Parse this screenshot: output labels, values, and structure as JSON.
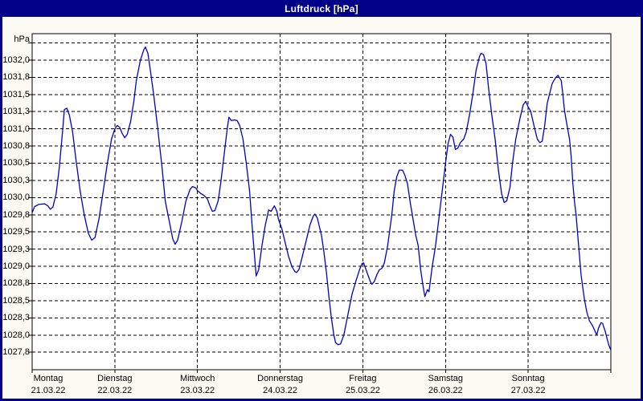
{
  "window": {
    "title": "Luftdruck [hPa]"
  },
  "colors": {
    "titlebar": "#000088",
    "frame": "#000088",
    "title_text": "#ffffff",
    "page_bg": "#fbfbf3",
    "plot_bg": "#ffffff",
    "grid": "#000000",
    "axis": "#000000",
    "line": "#0000cc"
  },
  "chart_data": {
    "type": "line",
    "title": "Luftdruck [hPa]",
    "unit_label": "hPa",
    "ylabel": "hPa",
    "xlabel": "",
    "ylim": [
      1027.5,
      1032.4
    ],
    "grid": "dashed, every 0.25 hPa horizontal, day boundaries vertical",
    "legend_position": "none",
    "yticks": [
      {
        "label": "1032,0",
        "value": 1032.0
      },
      {
        "label": "1031,8",
        "value": 1031.75
      },
      {
        "label": "1031,5",
        "value": 1031.5
      },
      {
        "label": "1031,3",
        "value": 1031.25
      },
      {
        "label": "1031,0",
        "value": 1031.0
      },
      {
        "label": "1030,8",
        "value": 1030.75
      },
      {
        "label": "1030,5",
        "value": 1030.5
      },
      {
        "label": "1030,3",
        "value": 1030.25
      },
      {
        "label": "1030,0",
        "value": 1030.0
      },
      {
        "label": "1029,8",
        "value": 1029.75
      },
      {
        "label": "1029,5",
        "value": 1029.5
      },
      {
        "label": "1029,3",
        "value": 1029.25
      },
      {
        "label": "1029,0",
        "value": 1029.0
      },
      {
        "label": "1028,8",
        "value": 1028.75
      },
      {
        "label": "1028,5",
        "value": 1028.5
      },
      {
        "label": "1028,3",
        "value": 1028.25
      },
      {
        "label": "1028,0",
        "value": 1028.0
      },
      {
        "label": "1027,8",
        "value": 1027.75
      }
    ],
    "grid_top_value": 1032.25,
    "x_days": [
      {
        "name": "Montag",
        "date": "21.03.22"
      },
      {
        "name": "Dienstag",
        "date": "22.03.22"
      },
      {
        "name": "Mittwoch",
        "date": "23.03.22"
      },
      {
        "name": "Donnerstag",
        "date": "24.03.22"
      },
      {
        "name": "Freitag",
        "date": "25.03.22"
      },
      {
        "name": "Samstag",
        "date": "26.03.22"
      },
      {
        "name": "Sonntag",
        "date": "27.03.22"
      }
    ],
    "series": [
      {
        "name": "Luftdruck",
        "unit": "hPa",
        "x_unit": "days since Montag 21.03.22 00:00",
        "points": [
          [
            0.0,
            1029.78
          ],
          [
            0.03,
            1029.87
          ],
          [
            0.08,
            1029.9
          ],
          [
            0.15,
            1029.91
          ],
          [
            0.19,
            1029.88
          ],
          [
            0.22,
            1029.83
          ],
          [
            0.25,
            1029.86
          ],
          [
            0.29,
            1030.05
          ],
          [
            0.33,
            1030.45
          ],
          [
            0.37,
            1031.0
          ],
          [
            0.39,
            1031.28
          ],
          [
            0.42,
            1031.3
          ],
          [
            0.45,
            1031.2
          ],
          [
            0.49,
            1030.95
          ],
          [
            0.53,
            1030.55
          ],
          [
            0.58,
            1030.1
          ],
          [
            0.63,
            1029.75
          ],
          [
            0.68,
            1029.48
          ],
          [
            0.72,
            1029.38
          ],
          [
            0.76,
            1029.42
          ],
          [
            0.81,
            1029.7
          ],
          [
            0.86,
            1030.1
          ],
          [
            0.91,
            1030.5
          ],
          [
            0.96,
            1030.85
          ],
          [
            1.0,
            1031.0
          ],
          [
            1.03,
            1031.05
          ],
          [
            1.06,
            1031.02
          ],
          [
            1.09,
            1030.93
          ],
          [
            1.12,
            1030.87
          ],
          [
            1.15,
            1030.92
          ],
          [
            1.19,
            1031.1
          ],
          [
            1.23,
            1031.4
          ],
          [
            1.26,
            1031.7
          ],
          [
            1.31,
            1032.0
          ],
          [
            1.35,
            1032.15
          ],
          [
            1.37,
            1032.19
          ],
          [
            1.4,
            1032.1
          ],
          [
            1.43,
            1031.85
          ],
          [
            1.47,
            1031.5
          ],
          [
            1.52,
            1031.0
          ],
          [
            1.57,
            1030.45
          ],
          [
            1.61,
            1029.95
          ],
          [
            1.66,
            1029.65
          ],
          [
            1.7,
            1029.4
          ],
          [
            1.73,
            1029.32
          ],
          [
            1.76,
            1029.38
          ],
          [
            1.81,
            1029.65
          ],
          [
            1.86,
            1029.95
          ],
          [
            1.91,
            1030.12
          ],
          [
            1.94,
            1030.16
          ],
          [
            1.98,
            1030.14
          ],
          [
            2.0,
            1030.1
          ],
          [
            2.04,
            1030.06
          ],
          [
            2.08,
            1030.03
          ],
          [
            2.12,
            1029.98
          ],
          [
            2.15,
            1029.88
          ],
          [
            2.18,
            1029.8
          ],
          [
            2.21,
            1029.81
          ],
          [
            2.25,
            1029.95
          ],
          [
            2.28,
            1030.2
          ],
          [
            2.32,
            1030.6
          ],
          [
            2.36,
            1031.0
          ],
          [
            2.38,
            1031.17
          ],
          [
            2.41,
            1031.12
          ],
          [
            2.45,
            1031.13
          ],
          [
            2.48,
            1031.12
          ],
          [
            2.51,
            1031.05
          ],
          [
            2.55,
            1030.85
          ],
          [
            2.59,
            1030.5
          ],
          [
            2.63,
            1030.1
          ],
          [
            2.66,
            1029.6
          ],
          [
            2.69,
            1029.15
          ],
          [
            2.71,
            1028.86
          ],
          [
            2.74,
            1028.95
          ],
          [
            2.78,
            1029.3
          ],
          [
            2.82,
            1029.6
          ],
          [
            2.86,
            1029.82
          ],
          [
            2.89,
            1029.8
          ],
          [
            2.93,
            1029.88
          ],
          [
            2.96,
            1029.8
          ],
          [
            2.98,
            1029.68
          ],
          [
            3.02,
            1029.55
          ],
          [
            3.06,
            1029.35
          ],
          [
            3.1,
            1029.15
          ],
          [
            3.14,
            1029.0
          ],
          [
            3.18,
            1028.92
          ],
          [
            3.2,
            1028.91
          ],
          [
            3.23,
            1028.96
          ],
          [
            3.27,
            1029.15
          ],
          [
            3.32,
            1029.4
          ],
          [
            3.36,
            1029.6
          ],
          [
            3.4,
            1029.73
          ],
          [
            3.42,
            1029.76
          ],
          [
            3.45,
            1029.7
          ],
          [
            3.48,
            1029.55
          ],
          [
            3.5,
            1029.45
          ],
          [
            3.53,
            1029.2
          ],
          [
            3.56,
            1028.9
          ],
          [
            3.59,
            1028.55
          ],
          [
            3.62,
            1028.25
          ],
          [
            3.65,
            1028.0
          ],
          [
            3.67,
            1027.89
          ],
          [
            3.7,
            1027.86
          ],
          [
            3.73,
            1027.87
          ],
          [
            3.77,
            1028.0
          ],
          [
            3.82,
            1028.3
          ],
          [
            3.87,
            1028.6
          ],
          [
            3.92,
            1028.8
          ],
          [
            3.96,
            1028.95
          ],
          [
            3.99,
            1029.04
          ],
          [
            4.01,
            1029.05
          ],
          [
            4.03,
            1028.98
          ],
          [
            4.06,
            1028.88
          ],
          [
            4.09,
            1028.78
          ],
          [
            4.11,
            1028.74
          ],
          [
            4.14,
            1028.78
          ],
          [
            4.17,
            1028.88
          ],
          [
            4.2,
            1028.95
          ],
          [
            4.23,
            1028.97
          ],
          [
            4.26,
            1029.05
          ],
          [
            4.3,
            1029.3
          ],
          [
            4.35,
            1029.74
          ],
          [
            4.38,
            1030.1
          ],
          [
            4.41,
            1030.3
          ],
          [
            4.44,
            1030.4
          ],
          [
            4.48,
            1030.4
          ],
          [
            4.51,
            1030.32
          ],
          [
            4.54,
            1030.2
          ],
          [
            4.57,
            1029.95
          ],
          [
            4.6,
            1029.74
          ],
          [
            4.64,
            1029.45
          ],
          [
            4.67,
            1029.3
          ],
          [
            4.7,
            1028.95
          ],
          [
            4.73,
            1028.7
          ],
          [
            4.75,
            1028.56
          ],
          [
            4.78,
            1028.66
          ],
          [
            4.8,
            1028.63
          ],
          [
            4.84,
            1029.0
          ],
          [
            4.88,
            1029.3
          ],
          [
            4.92,
            1029.7
          ],
          [
            4.96,
            1030.1
          ],
          [
            5.0,
            1030.5
          ],
          [
            5.03,
            1030.78
          ],
          [
            5.06,
            1030.92
          ],
          [
            5.09,
            1030.88
          ],
          [
            5.12,
            1030.7
          ],
          [
            5.15,
            1030.72
          ],
          [
            5.18,
            1030.8
          ],
          [
            5.22,
            1030.85
          ],
          [
            5.25,
            1030.95
          ],
          [
            5.29,
            1031.2
          ],
          [
            5.33,
            1031.5
          ],
          [
            5.37,
            1031.85
          ],
          [
            5.41,
            1032.05
          ],
          [
            5.43,
            1032.1
          ],
          [
            5.46,
            1032.08
          ],
          [
            5.49,
            1031.95
          ],
          [
            5.52,
            1031.6
          ],
          [
            5.56,
            1031.2
          ],
          [
            5.6,
            1030.85
          ],
          [
            5.64,
            1030.4
          ],
          [
            5.68,
            1030.05
          ],
          [
            5.71,
            1029.93
          ],
          [
            5.74,
            1029.95
          ],
          [
            5.78,
            1030.15
          ],
          [
            5.81,
            1030.5
          ],
          [
            5.85,
            1030.85
          ],
          [
            5.9,
            1031.15
          ],
          [
            5.94,
            1031.35
          ],
          [
            5.97,
            1031.4
          ],
          [
            6.0,
            1031.32
          ],
          [
            6.03,
            1031.26
          ],
          [
            6.07,
            1031.05
          ],
          [
            6.11,
            1030.85
          ],
          [
            6.14,
            1030.8
          ],
          [
            6.17,
            1030.82
          ],
          [
            6.2,
            1031.05
          ],
          [
            6.23,
            1031.37
          ],
          [
            6.29,
            1031.66
          ],
          [
            6.33,
            1031.74
          ],
          [
            6.36,
            1031.78
          ],
          [
            6.4,
            1031.7
          ],
          [
            6.42,
            1031.5
          ],
          [
            6.44,
            1031.26
          ],
          [
            6.47,
            1031.05
          ],
          [
            6.5,
            1030.85
          ],
          [
            6.52,
            1030.6
          ],
          [
            6.54,
            1030.21
          ],
          [
            6.56,
            1029.95
          ],
          [
            6.58,
            1029.74
          ],
          [
            6.61,
            1029.3
          ],
          [
            6.64,
            1028.87
          ],
          [
            6.68,
            1028.52
          ],
          [
            6.71,
            1028.33
          ],
          [
            6.74,
            1028.21
          ],
          [
            6.78,
            1028.13
          ],
          [
            6.8,
            1028.08
          ],
          [
            6.83,
            1028.0
          ],
          [
            6.85,
            1028.1
          ],
          [
            6.88,
            1028.18
          ],
          [
            6.9,
            1028.17
          ],
          [
            6.93,
            1028.06
          ],
          [
            6.96,
            1027.92
          ],
          [
            6.98,
            1027.84
          ],
          [
            7.0,
            1027.78
          ]
        ]
      }
    ]
  }
}
